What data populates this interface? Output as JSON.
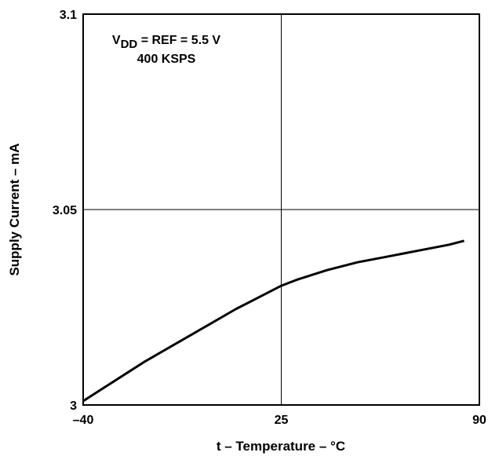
{
  "chart_data": {
    "type": "line",
    "title": "",
    "xlabel": "t – Temperature – °C",
    "ylabel": "Supply Current – mA",
    "xlim": [
      -40,
      90
    ],
    "ylim": [
      3.0,
      3.1
    ],
    "x_ticks": [
      -40,
      25,
      90
    ],
    "x_tick_labels": [
      "–40",
      "25",
      "90"
    ],
    "y_ticks": [
      3.0,
      3.05,
      3.1
    ],
    "y_tick_labels": [
      "3",
      "3.05",
      "3.1"
    ],
    "grid": true,
    "series": [
      {
        "x": [
          -40,
          -30,
          -20,
          -10,
          0,
          10,
          20,
          25,
          30,
          40,
          50,
          60,
          70,
          80,
          85
        ],
        "y": [
          3.001,
          3.006,
          3.011,
          3.0155,
          3.02,
          3.0245,
          3.0285,
          3.0305,
          3.032,
          3.0345,
          3.0365,
          3.038,
          3.0395,
          3.041,
          3.042
        ],
        "color": "#000000"
      }
    ],
    "annotation": {
      "line1_main": "V",
      "line1_sub": "DD",
      "line1_rest": " = REF = 5.5 V",
      "line2": "400 KSPS"
    }
  }
}
